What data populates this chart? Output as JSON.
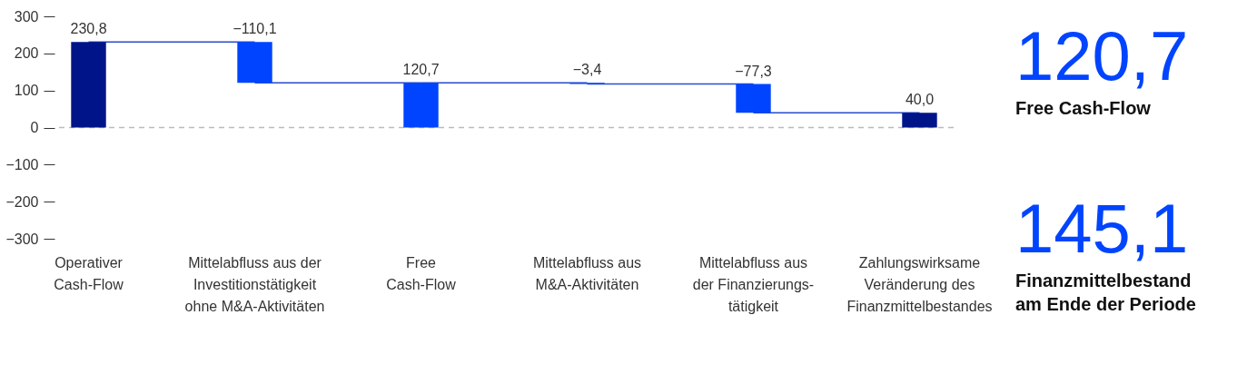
{
  "chart_data": [
    {
      "type": "bar",
      "categories": [
        "Operativer\nCash-Flow",
        "Mittelabfluss aus der\nInvestitionstätigkeit\nohne M&A-Aktivitäten",
        "Free\nCash-Flow",
        "Mittelabfluss aus\nM&A-Aktivitäten",
        "Mittelabfluss aus\nder Finanzierungs-\ntätigkeit",
        "Zahlungswirksame\nVeränderung des\nFinanzmittelbestandes"
      ],
      "values": [
        230.8,
        -110.1,
        120.7,
        -3.4,
        -77.3,
        40.0
      ],
      "base": [
        0,
        230.8,
        0,
        120.7,
        117.3,
        0
      ],
      "colors": [
        "#001489",
        "#0044ff",
        "#0044ff",
        "#0044ff",
        "#0044ff",
        "#001489"
      ],
      "value_labels": [
        "230,8",
        "−110,1",
        "120,7",
        "−3,4",
        "−77,3",
        "40,0"
      ],
      "ylim": [
        -300,
        300
      ],
      "yticks": [
        {
          "value": -300,
          "label": "−300"
        },
        {
          "value": -200,
          "label": "−200"
        },
        {
          "value": -100,
          "label": "−100"
        },
        0,
        100,
        200,
        300
      ],
      "ref_lines": [
        {
          "axis": "y",
          "value": 0,
          "color": "#bbbbbb",
          "line_style": "dashed"
        }
      ],
      "grid": false,
      "legend": false
    },
    {
      "type": "other",
      "annotations": [
        "120,7",
        "Free Cash-Flow",
        "145,1",
        "Finanzmittelbestand\nam Ende der Periode"
      ]
    }
  ]
}
